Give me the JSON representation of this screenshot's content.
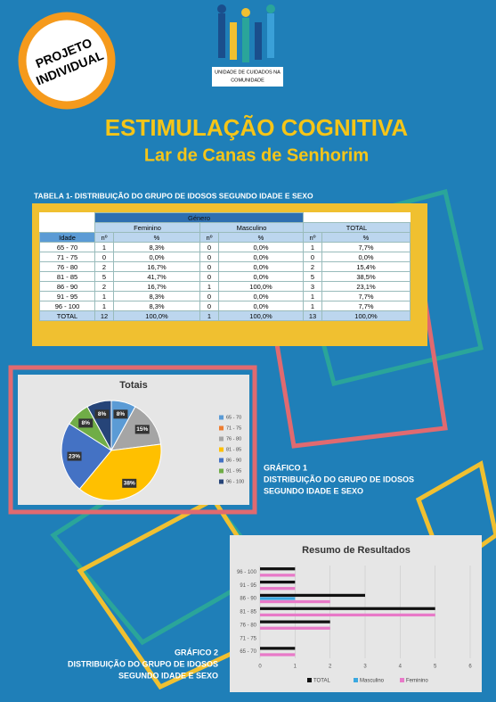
{
  "badge": [
    "PROJETO",
    "INDIVIDUAL"
  ],
  "logo": [
    "UNIDADE DE CUIDADOS NA",
    "COMUNIDADE"
  ],
  "title": "ESTIMULAÇÃO COGNITIVA",
  "subtitle": "Lar de Canas de Senhorim",
  "table": {
    "caption": "TABELA 1- DISTRIBUIÇÃO DO GRUPO DE IDOSOS SEGUNDO IDADE E SEXO",
    "group_header": "Género",
    "headers": [
      "Feminino",
      "Masculino",
      "TOTAL"
    ],
    "subheaders": [
      "Idade",
      "nº",
      "%",
      "nº",
      "%",
      "nº",
      "%"
    ],
    "rows": [
      [
        "65 - 70",
        "1",
        "8,3%",
        "0",
        "0,0%",
        "1",
        "7,7%"
      ],
      [
        "71 - 75",
        "0",
        "0,0%",
        "0",
        "0,0%",
        "0",
        "0,0%"
      ],
      [
        "76 - 80",
        "2",
        "16,7%",
        "0",
        "0,0%",
        "2",
        "15,4%"
      ],
      [
        "81 - 85",
        "5",
        "41,7%",
        "0",
        "0,0%",
        "5",
        "38,5%"
      ],
      [
        "86 - 90",
        "2",
        "16,7%",
        "1",
        "100,0%",
        "3",
        "23,1%"
      ],
      [
        "91 - 95",
        "1",
        "8,3%",
        "0",
        "0,0%",
        "1",
        "7,7%"
      ],
      [
        "96 - 100",
        "1",
        "8,3%",
        "0",
        "0,0%",
        "1",
        "7,7%"
      ],
      [
        "TOTAL",
        "12",
        "100,0%",
        "1",
        "100,0%",
        "13",
        "100,0%"
      ]
    ]
  },
  "caption1": [
    "GRÁFICO 1",
    "DISTRIBUIÇÃO DO GRUPO DE IDOSOS",
    "SEGUNDO IDADE E SEXO"
  ],
  "caption2": [
    "GRÁFICO 2",
    "DISTRIBUIÇÃO DO GRUPO DE IDOSOS",
    "SEGUNDO IDADE E SEXO"
  ],
  "chart_data": [
    {
      "type": "pie",
      "title": "Totais",
      "categories": [
        "65 - 70",
        "71 - 75",
        "76 - 80",
        "81 - 85",
        "86 - 90",
        "91 - 95",
        "96 - 100"
      ],
      "values": [
        8,
        0,
        15,
        38,
        23,
        8,
        8
      ],
      "value_labels": [
        "8%",
        null,
        "15%",
        "38%",
        "23%",
        "8%",
        "8%"
      ],
      "colors": [
        "#5b9bd5",
        "#ed7d31",
        "#a5a5a5",
        "#ffc000",
        "#4472c4",
        "#70ad47",
        "#264478"
      ],
      "legend": "right"
    },
    {
      "type": "hbar",
      "title": "Resumo de Resultados",
      "categories": [
        "65 - 70",
        "71 - 75",
        "76 - 80",
        "81 - 85",
        "86 - 90",
        "91 - 95",
        "96 - 100"
      ],
      "series": [
        {
          "name": "TOTAL",
          "color": "#111111",
          "values": [
            1,
            0,
            2,
            5,
            3,
            1,
            1
          ]
        },
        {
          "name": "Masculino",
          "color": "#3aa8e0",
          "values": [
            0,
            0,
            0,
            0,
            1,
            0,
            0
          ]
        },
        {
          "name": "Feminino",
          "color": "#e879c8",
          "values": [
            1,
            0,
            2,
            5,
            2,
            1,
            1
          ]
        }
      ],
      "xlim": [
        0,
        6
      ],
      "xticks": [
        0,
        1,
        2,
        3,
        4,
        5,
        6
      ],
      "grid": true,
      "legend": "bottom"
    }
  ]
}
